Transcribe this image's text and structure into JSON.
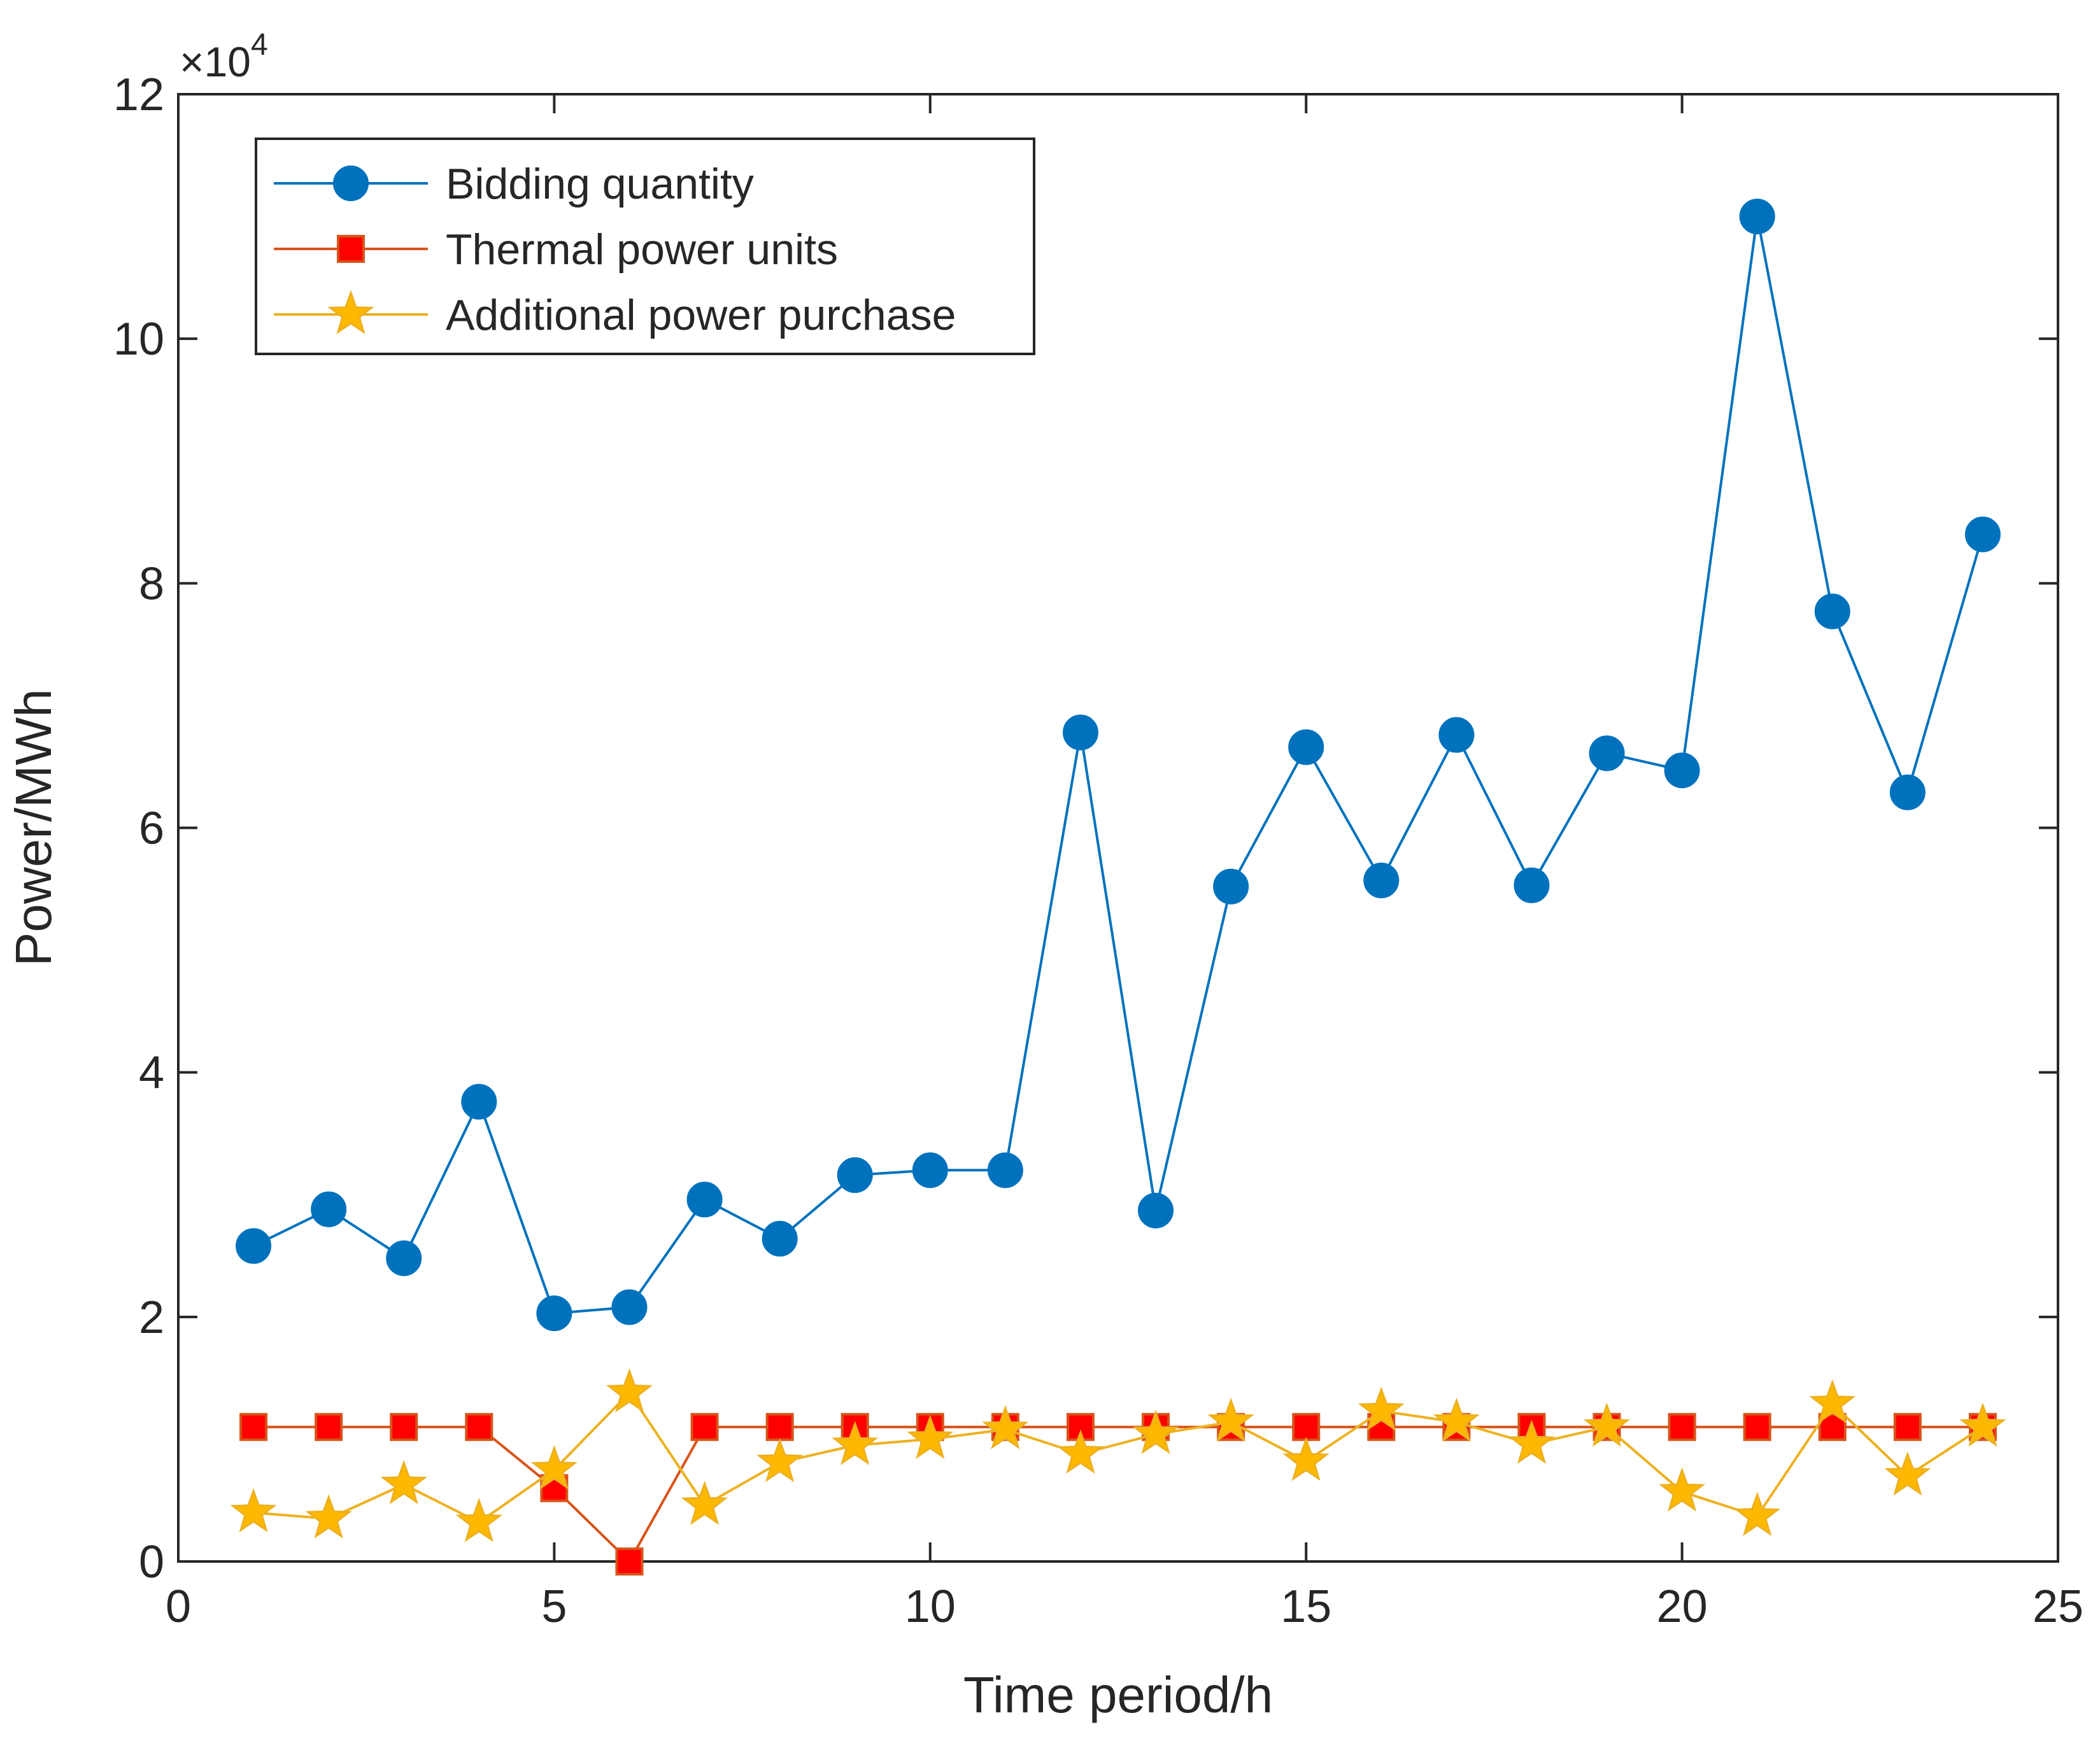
{
  "chart_data": {
    "type": "line",
    "title": "",
    "xlabel": "Time period/h",
    "ylabel": "Power/MWh",
    "y_multiplier": "×10",
    "y_exponent": "4",
    "xlim": [
      0,
      25
    ],
    "ylim": [
      0,
      12
    ],
    "xticks": [
      "0",
      "5",
      "10",
      "15",
      "20",
      "25"
    ],
    "yticks": [
      "0",
      "2",
      "4",
      "6",
      "8",
      "10",
      "12"
    ],
    "grid": false,
    "legend_position": "top-left",
    "x": [
      1,
      2,
      3,
      4,
      5,
      6,
      7,
      8,
      9,
      10,
      11,
      12,
      13,
      14,
      15,
      16,
      17,
      18,
      19,
      20,
      21,
      22,
      23,
      24
    ],
    "series": [
      {
        "name": "Bidding quantity",
        "color": "#0072BD",
        "marker": "circle",
        "values": [
          2.58,
          2.88,
          2.48,
          3.76,
          2.03,
          2.08,
          2.96,
          2.64,
          3.16,
          3.2,
          3.2,
          6.78,
          2.87,
          5.52,
          6.66,
          5.57,
          6.76,
          5.53,
          6.61,
          6.47,
          11.0,
          7.77,
          6.29,
          8.4
        ]
      },
      {
        "name": "Thermal power units",
        "color": "#D95319",
        "marker_fill": "#FF0000",
        "marker": "square",
        "values": [
          1.1,
          1.1,
          1.1,
          1.1,
          0.6,
          0.0,
          1.1,
          1.1,
          1.1,
          1.1,
          1.1,
          1.1,
          1.1,
          1.1,
          1.1,
          1.1,
          1.1,
          1.1,
          1.1,
          1.1,
          1.1,
          1.1,
          1.1,
          1.1
        ]
      },
      {
        "name": "Additional power purchase",
        "color": "#EDB120",
        "marker_fill": "#FFB800",
        "marker": "star",
        "values": [
          0.4,
          0.35,
          0.63,
          0.32,
          0.75,
          1.38,
          0.46,
          0.81,
          0.95,
          1.0,
          1.08,
          0.88,
          1.04,
          1.14,
          0.82,
          1.23,
          1.14,
          0.96,
          1.1,
          0.57,
          0.37,
          1.29,
          0.7,
          1.1
        ]
      }
    ]
  }
}
